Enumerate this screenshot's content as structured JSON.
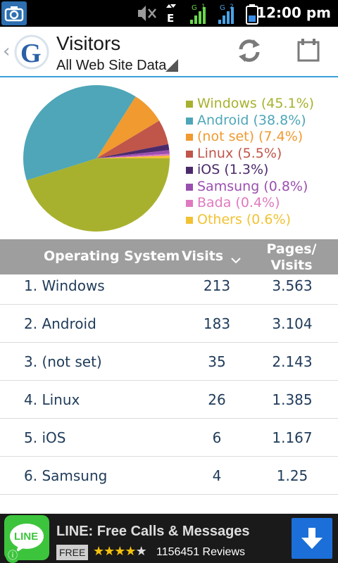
{
  "status_bar": {
    "time": "12:00 pm",
    "network_1": "E",
    "network_2": "G",
    "icons": [
      "camera-icon",
      "mute-icon",
      "data-arrows-icon",
      "signal-icon",
      "signal-icon-2",
      "battery-icon"
    ]
  },
  "header": {
    "title": "Visitors",
    "subtitle": "All Web Site Data",
    "logo_letter": "G",
    "actions": [
      "refresh-icon",
      "calendar-icon"
    ]
  },
  "colors": {
    "accent": "#3aa0d8",
    "header_bg": "#9e9e9e",
    "row_text": "#1f3b5a"
  },
  "chart_data": {
    "type": "pie",
    "series": [
      {
        "name": "Windows",
        "value": 45.1,
        "label": "Windows (45.1%)",
        "color": "#a8b12e"
      },
      {
        "name": "Android",
        "value": 38.8,
        "label": "Android (38.8%)",
        "color": "#4ea6b8"
      },
      {
        "name": "(not set)",
        "value": 7.4,
        "label": "(not set) (7.4%)",
        "color": "#f09a2f"
      },
      {
        "name": "Linux",
        "value": 5.5,
        "label": "Linux (5.5%)",
        "color": "#c0554a"
      },
      {
        "name": "iOS",
        "value": 1.3,
        "label": "iOS (1.3%)",
        "color": "#4b2a6b"
      },
      {
        "name": "Samsung",
        "value": 0.8,
        "label": "Samsung (0.8%)",
        "color": "#9a4fb0"
      },
      {
        "name": "Bada",
        "value": 0.4,
        "label": "Bada (0.4%)",
        "color": "#e07ac0"
      },
      {
        "name": "Others",
        "value": 0.6,
        "label": "Others (0.6%)",
        "color": "#f1c232"
      }
    ],
    "legend_position": "right"
  },
  "table": {
    "headers": {
      "os": "Operating System",
      "visits": "Visits",
      "pages_line1": "Pages/",
      "pages_line2": "Visits"
    },
    "sort_indicator": "chevron-down-icon",
    "rows": [
      {
        "rank": "1.",
        "name": "Windows",
        "visits": "213",
        "pages_per_visit": "3.563"
      },
      {
        "rank": "2.",
        "name": "Android",
        "visits": "183",
        "pages_per_visit": "3.104"
      },
      {
        "rank": "3.",
        "name": "(not set)",
        "visits": "35",
        "pages_per_visit": "2.143"
      },
      {
        "rank": "4.",
        "name": "Linux",
        "visits": "26",
        "pages_per_visit": "1.385"
      },
      {
        "rank": "5.",
        "name": "iOS",
        "visits": "6",
        "pages_per_visit": "1.167"
      },
      {
        "rank": "6.",
        "name": "Samsung",
        "visits": "4",
        "pages_per_visit": "1.25"
      }
    ]
  },
  "ad": {
    "icon_label": "LINE",
    "title": "LINE: Free Calls & Messages",
    "price_tag": "FREE",
    "rating": 4,
    "rating_max": 5,
    "reviews": "1156451 Reviews"
  }
}
